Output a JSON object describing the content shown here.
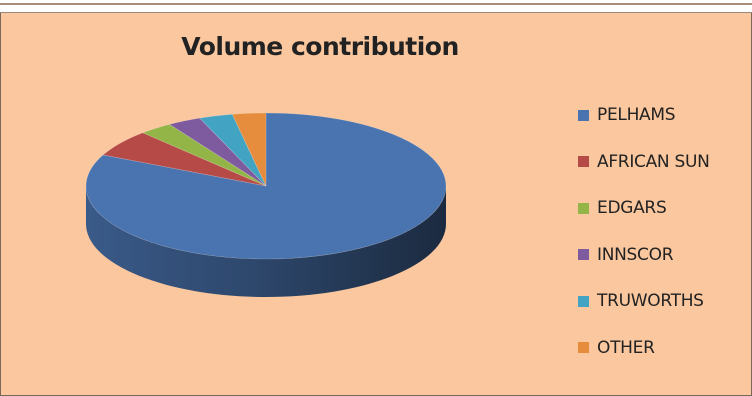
{
  "chart_data": {
    "type": "pie",
    "title": "Volume contribution",
    "categories": [
      "PELHAMS",
      "AFRICAN SUN",
      "EDGARS",
      "INNSCOR",
      "TRUWORTHS",
      "OTHER"
    ],
    "values": [
      82,
      6,
      3,
      3,
      3,
      3
    ],
    "unit": "%",
    "colors": [
      "#4a74b0",
      "#b54a47",
      "#93b548",
      "#7d5b9e",
      "#43a3c2",
      "#e58d3c"
    ],
    "legend_position": "right",
    "style": "3d"
  }
}
